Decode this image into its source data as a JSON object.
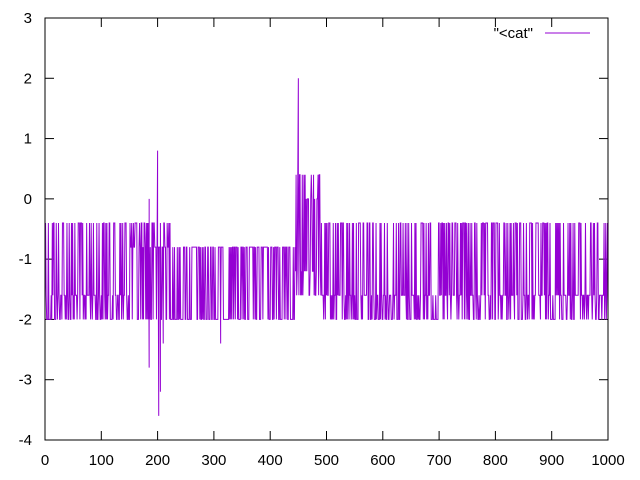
{
  "chart_data": {
    "type": "line",
    "title": "",
    "xlabel": "",
    "ylabel": "",
    "xlim": [
      0,
      1000
    ],
    "ylim": [
      -4,
      3
    ],
    "xticks": [
      "0",
      "100",
      "200",
      "300",
      "400",
      "500",
      "600",
      "700",
      "800",
      "900",
      "1000"
    ],
    "yticks": [
      "3",
      "2",
      "1",
      "0",
      "-1",
      "-2",
      "-3",
      "-4"
    ],
    "grid": false,
    "legend": {
      "position": "top-right",
      "label": "\"<cat\""
    },
    "series": [
      {
        "name": "\"<cat\"",
        "color": "#9400d3",
        "segments": [
          {
            "x_from": 0,
            "x_to": 150,
            "levels": [
              -0.4,
              -1.6,
              -2.0
            ],
            "note": "dense oscillation"
          },
          {
            "x_from": 150,
            "x_to": 230,
            "levels": [
              -0.4,
              -0.8,
              -2.0
            ],
            "note": "dense oscillation"
          },
          {
            "x_from": 230,
            "x_to": 445,
            "levels": [
              -0.8,
              -2.0
            ],
            "note": "dense oscillation"
          },
          {
            "x_from": 445,
            "x_to": 490,
            "levels": [
              0.4,
              -1.2,
              0.0,
              -1.6
            ],
            "note": "dense oscillation"
          },
          {
            "x_from": 490,
            "x_to": 1000,
            "levels": [
              -0.4,
              -1.6,
              -2.0
            ],
            "note": "dense oscillation"
          }
        ],
        "spikes": [
          {
            "x": 185,
            "y": 0.0
          },
          {
            "x": 185,
            "y": -2.8
          },
          {
            "x": 200,
            "y": 0.8
          },
          {
            "x": 202,
            "y": -3.6
          },
          {
            "x": 205,
            "y": -3.2
          },
          {
            "x": 210,
            "y": -2.4
          },
          {
            "x": 312,
            "y": -2.4
          },
          {
            "x": 450,
            "y": 2.0
          }
        ]
      }
    ]
  }
}
